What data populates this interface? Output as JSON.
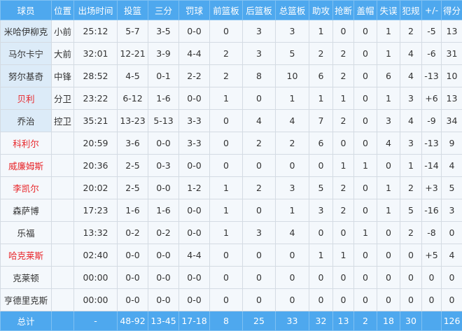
{
  "headers": [
    "球员",
    "位置",
    "出场时间",
    "投篮",
    "三分",
    "罚球",
    "前篮板",
    "后篮板",
    "总篮板",
    "助攻",
    "抢断",
    "盖帽",
    "失误",
    "犯规",
    "+/-",
    "得分"
  ],
  "highlight_color": "#e8262a",
  "header_color": "#4ea8ee",
  "rows": [
    {
      "starter": true,
      "red": false,
      "cells": [
        "米哈伊柳克",
        "小前",
        "25:12",
        "5-7",
        "3-5",
        "0-0",
        "0",
        "3",
        "3",
        "1",
        "0",
        "0",
        "1",
        "2",
        "-5",
        "13"
      ]
    },
    {
      "starter": true,
      "red": false,
      "cells": [
        "马尔卡宁",
        "大前",
        "32:01",
        "12-21",
        "3-9",
        "4-4",
        "2",
        "3",
        "5",
        "2",
        "2",
        "0",
        "1",
        "4",
        "-6",
        "31"
      ]
    },
    {
      "starter": true,
      "red": false,
      "cells": [
        "努尔基奇",
        "中锋",
        "28:52",
        "4-5",
        "0-1",
        "2-2",
        "2",
        "8",
        "10",
        "6",
        "2",
        "0",
        "6",
        "4",
        "-13",
        "10"
      ]
    },
    {
      "starter": true,
      "red": true,
      "cells": [
        "贝利",
        "分卫",
        "23:22",
        "6-12",
        "1-6",
        "0-0",
        "1",
        "0",
        "1",
        "1",
        "1",
        "0",
        "1",
        "3",
        "+6",
        "13"
      ]
    },
    {
      "starter": true,
      "red": false,
      "cells": [
        "乔治",
        "控卫",
        "35:21",
        "13-23",
        "5-13",
        "3-3",
        "0",
        "4",
        "4",
        "7",
        "2",
        "0",
        "3",
        "4",
        "-9",
        "34"
      ]
    },
    {
      "starter": false,
      "red": true,
      "cells": [
        "科利尔",
        "",
        "20:59",
        "3-6",
        "0-0",
        "3-3",
        "0",
        "2",
        "2",
        "6",
        "0",
        "0",
        "4",
        "3",
        "-13",
        "9"
      ]
    },
    {
      "starter": false,
      "red": true,
      "cells": [
        "威廉姆斯",
        "",
        "20:36",
        "2-5",
        "0-3",
        "0-0",
        "0",
        "0",
        "0",
        "0",
        "1",
        "1",
        "0",
        "1",
        "-14",
        "4"
      ]
    },
    {
      "starter": false,
      "red": true,
      "cells": [
        "李凯尔",
        "",
        "20:02",
        "2-5",
        "0-0",
        "1-2",
        "1",
        "2",
        "3",
        "5",
        "2",
        "0",
        "1",
        "2",
        "+3",
        "5"
      ]
    },
    {
      "starter": false,
      "red": false,
      "cells": [
        "森萨博",
        "",
        "17:23",
        "1-6",
        "1-6",
        "0-0",
        "1",
        "0",
        "1",
        "3",
        "2",
        "0",
        "1",
        "5",
        "-16",
        "3"
      ]
    },
    {
      "starter": false,
      "red": false,
      "cells": [
        "乐福",
        "",
        "13:32",
        "0-2",
        "0-2",
        "0-0",
        "1",
        "3",
        "4",
        "0",
        "0",
        "1",
        "0",
        "2",
        "-8",
        "0"
      ]
    },
    {
      "starter": false,
      "red": true,
      "cells": [
        "哈克莱斯",
        "",
        "02:40",
        "0-0",
        "0-0",
        "4-4",
        "0",
        "0",
        "0",
        "1",
        "1",
        "0",
        "0",
        "0",
        "+5",
        "4"
      ]
    },
    {
      "starter": false,
      "red": false,
      "cells": [
        "克莱顿",
        "",
        "00:00",
        "0-0",
        "0-0",
        "0-0",
        "0",
        "0",
        "0",
        "0",
        "0",
        "0",
        "0",
        "0",
        "0",
        "0"
      ]
    },
    {
      "starter": false,
      "red": false,
      "cells": [
        "亨德里克斯",
        "",
        "00:00",
        "0-0",
        "0-0",
        "0-0",
        "0",
        "0",
        "0",
        "0",
        "0",
        "0",
        "0",
        "0",
        "0",
        "0"
      ]
    }
  ],
  "total": [
    "总计",
    "",
    "-",
    "48-92",
    "13-45",
    "17-18",
    "8",
    "25",
    "33",
    "32",
    "13",
    "2",
    "18",
    "30",
    "",
    "126"
  ]
}
